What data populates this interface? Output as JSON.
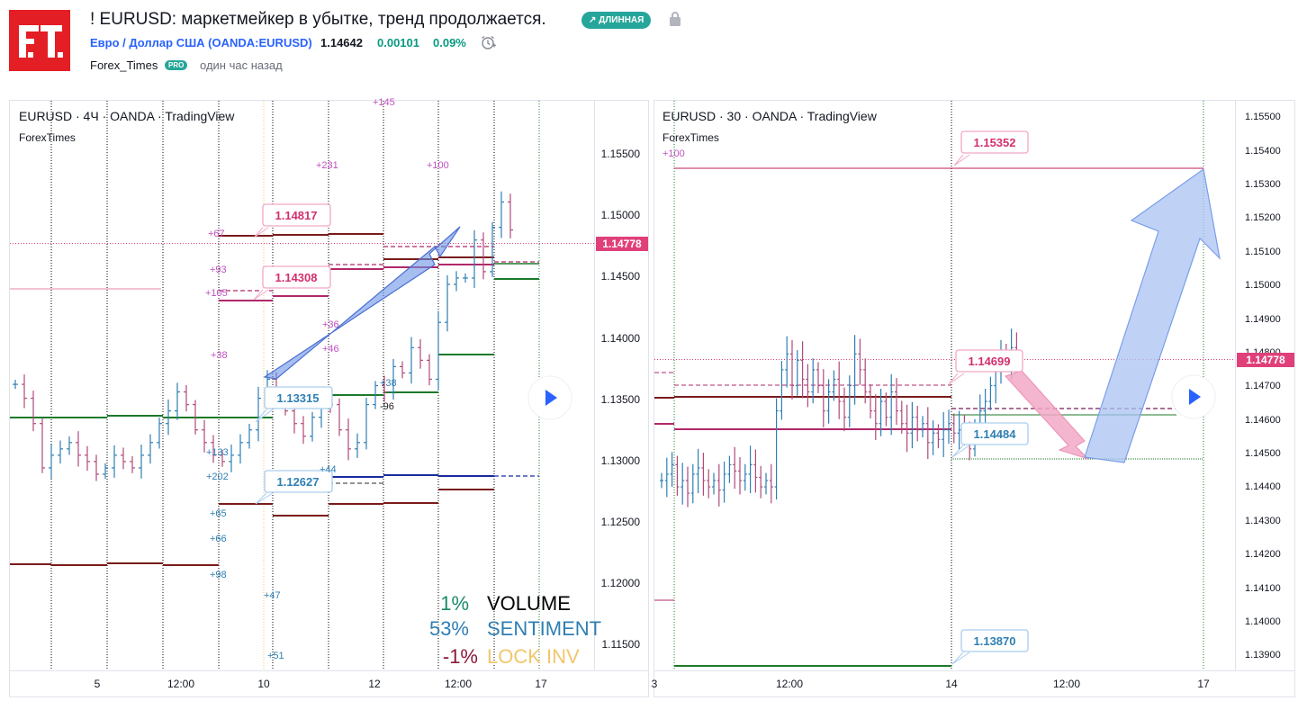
{
  "header": {
    "logo_text": "F.T.",
    "title": "! EURUSD: маркетмейкер в убытке, тренд продолжается.",
    "badge": "↗ ДЛИННАЯ",
    "symbol_line": "Евро / Доллар США (OANDA:EURUSD)",
    "price": "1.14642",
    "change": "0.00101",
    "change_pct": "0.09%",
    "author": "Forex_Times",
    "author_badge": "PRO",
    "published": "один час назад"
  },
  "colors": {
    "up": "#2f7fb3",
    "down": "#b04a7a",
    "price_tag": "#e0407a",
    "green_level": "#1b7a2a",
    "darkred_level": "#7a1b1b",
    "navy_level": "#1a2a9e",
    "arrow_blue": "#6d92e6",
    "arrow_pink": "#f2a8c6"
  },
  "chart_data": [
    {
      "type": "ohlc",
      "legend": "EURUSD · 4Ч · OANDA · TradingView",
      "watermark": "ForexTimes",
      "ylim": [
        1.113,
        1.158
      ],
      "y_ticks": [
        "1.15500",
        "1.15000",
        "1.14500",
        "1.14000",
        "1.13500",
        "1.13000",
        "1.12500",
        "1.12000",
        "1.11500"
      ],
      "x_ticks": [
        "5",
        "12:00",
        "10",
        "12",
        "12:00",
        "17"
      ],
      "current_price": "1.14778",
      "callouts": [
        "1.14817",
        "1.14308",
        "1.13315",
        "1.12627"
      ],
      "level_labels": [
        "+145",
        "+231",
        "+100",
        "+67",
        "+93",
        "+105",
        "+36",
        "+46",
        "+38",
        "+38",
        "-96",
        "+133",
        "+202",
        "+44",
        "+65",
        "+66",
        "+98",
        "+47",
        "+51"
      ],
      "stats": [
        {
          "value": "1%",
          "label": "VOLUME"
        },
        {
          "value": "53%",
          "label": "SENTIMENT"
        },
        {
          "value": "-1%",
          "label": "LOCK INV"
        }
      ],
      "bars_close": [
        1.1356,
        1.1345,
        1.1325,
        1.129,
        1.13,
        1.1305,
        1.131,
        1.13,
        1.1295,
        1.1285,
        1.129,
        1.13,
        1.1295,
        1.129,
        1.13,
        1.131,
        1.1325,
        1.1335,
        1.135,
        1.134,
        1.132,
        1.131,
        1.13,
        1.1295,
        1.13,
        1.131,
        1.132,
        1.1345,
        1.136,
        1.135,
        1.1335,
        1.1325,
        1.1315,
        1.133,
        1.1345,
        1.134,
        1.132,
        1.1305,
        1.131,
        1.134,
        1.1355,
        1.135,
        1.137,
        1.1365,
        1.1385,
        1.1375,
        1.136,
        1.1405,
        1.1435,
        1.144,
        1.144,
        1.147,
        1.1445,
        1.148,
        1.15,
        1.1478
      ]
    },
    {
      "type": "ohlc",
      "legend": "EURUSD · 30 · OANDA · TradingView",
      "watermark": "ForexTimes",
      "ylim": [
        1.138,
        1.156
      ],
      "y_ticks": [
        "1.15500",
        "1.15400",
        "1.15300",
        "1.15200",
        "1.15100",
        "1.15000",
        "1.14900",
        "1.14800",
        "1.14700",
        "1.14600",
        "1.14500",
        "1.14400",
        "1.14300",
        "1.14200",
        "1.14100",
        "1.14000",
        "1.13900"
      ],
      "x_ticks": [
        "3",
        "12:00",
        "14",
        "12:00",
        "17"
      ],
      "current_price": "1.14778",
      "callouts": [
        "1.15352",
        "1.14699",
        "1.14484",
        "1.13870"
      ],
      "level_labels": [
        "+100"
      ],
      "bars_close": [
        1.144,
        1.1442,
        1.1445,
        1.1438,
        1.144,
        1.1436,
        1.1442,
        1.1444,
        1.144,
        1.1438,
        1.144,
        1.1437,
        1.1442,
        1.1445,
        1.1443,
        1.144,
        1.1442,
        1.1445,
        1.1441,
        1.1438,
        1.144,
        1.1438,
        1.1462,
        1.1475,
        1.148,
        1.147,
        1.1478,
        1.1472,
        1.1468,
        1.1475,
        1.147,
        1.1462,
        1.1468,
        1.1472,
        1.1465,
        1.146,
        1.147,
        1.148,
        1.1475,
        1.1468,
        1.1462,
        1.1458,
        1.1465,
        1.146,
        1.1468,
        1.1462,
        1.1458,
        1.1455,
        1.146,
        1.1456,
        1.1458,
        1.1452,
        1.1455,
        1.1453,
        1.1456,
        1.1458,
        1.1455,
        1.1456,
        1.1455,
        1.145,
        1.1457,
        1.1462,
        1.1465,
        1.147,
        1.1475,
        1.148,
        1.1478,
        1.1482,
        1.148
      ]
    }
  ]
}
